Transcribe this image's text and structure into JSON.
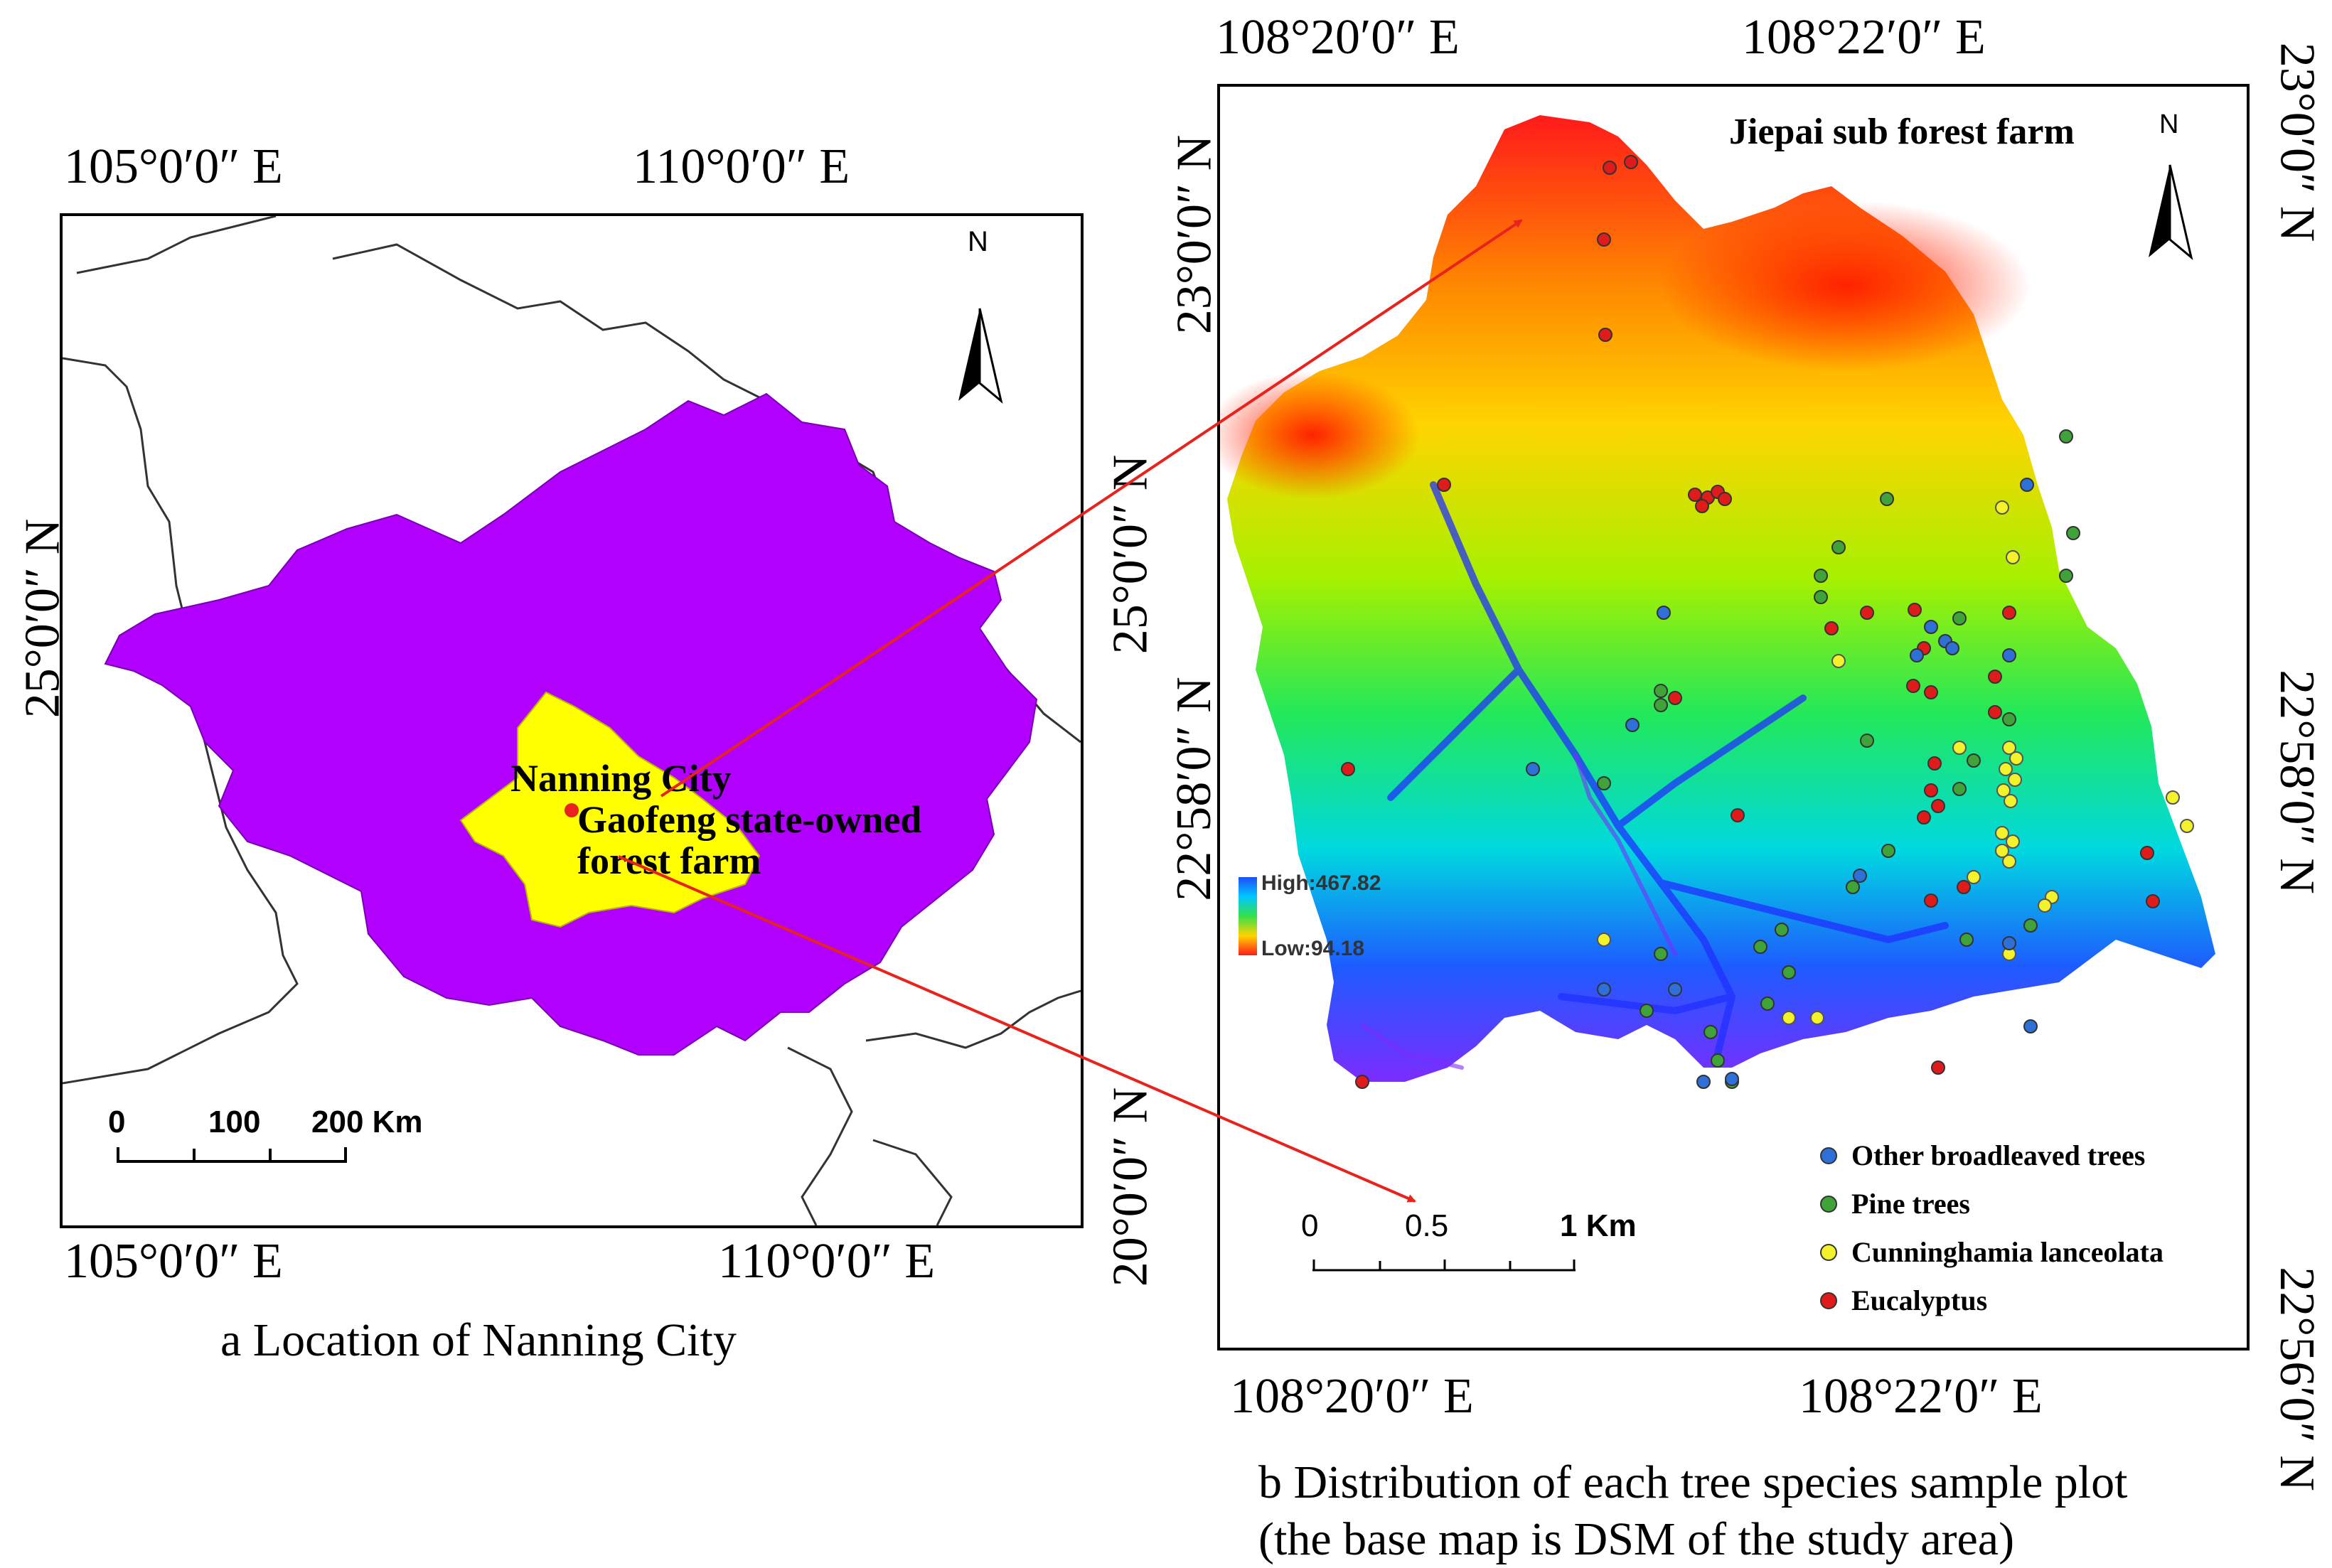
{
  "panel_a": {
    "top_coords": [
      "105°0′0″ E",
      "110°0′0″ E"
    ],
    "bottom_coords": [
      "105°0′0″ E",
      "110°0′0″ E"
    ],
    "left_coord": "25°0′0″ N",
    "right_coords": [
      "25°0′0″ N",
      "20°0′0″ N"
    ],
    "north_label": "N",
    "labels": {
      "city": "Nanning City",
      "farm_line1": "Gaofeng state-owned",
      "farm_line2": "forest farm"
    },
    "scale": {
      "ticks": [
        "0",
        "100",
        "200 Km"
      ]
    },
    "caption": "a Location of Nanning City",
    "colors": {
      "province": "#b200ff",
      "city": "#ffff00",
      "marker": "#e8221c"
    }
  },
  "panel_b": {
    "top_coords": [
      "108°20′0″ E",
      "108°22′0″ E"
    ],
    "bottom_coords": [
      "108°20′0″ E",
      "108°22′0″ E"
    ],
    "left_coords": [
      "23°0′0″ N",
      "22°58′0″ N"
    ],
    "right_coords": [
      "23°0′0″ N",
      "22°58′0″ N",
      "22°56′0″ N"
    ],
    "title": "Jiepai sub forest farm",
    "north_label": "N",
    "dsm_legend": {
      "high": "High:467.82",
      "low": "Low:94.18"
    },
    "scale": {
      "ticks": [
        "0",
        "0.5",
        "1 Km"
      ]
    },
    "legend": [
      {
        "label": "Other broadleaved trees",
        "color": "#2f6fd8"
      },
      {
        "label": "Pine trees",
        "color": "#3fa33a"
      },
      {
        "label": "Cunninghamia lanceolata",
        "color": "#f4f22a"
      },
      {
        "label": "Eucalyptus",
        "color": "#e01b1b"
      }
    ],
    "caption_line1": "b Distribution of each tree species sample plot",
    "caption_line2": "(the base map is DSM of the study area)"
  },
  "arrow_color": "#e8221c"
}
